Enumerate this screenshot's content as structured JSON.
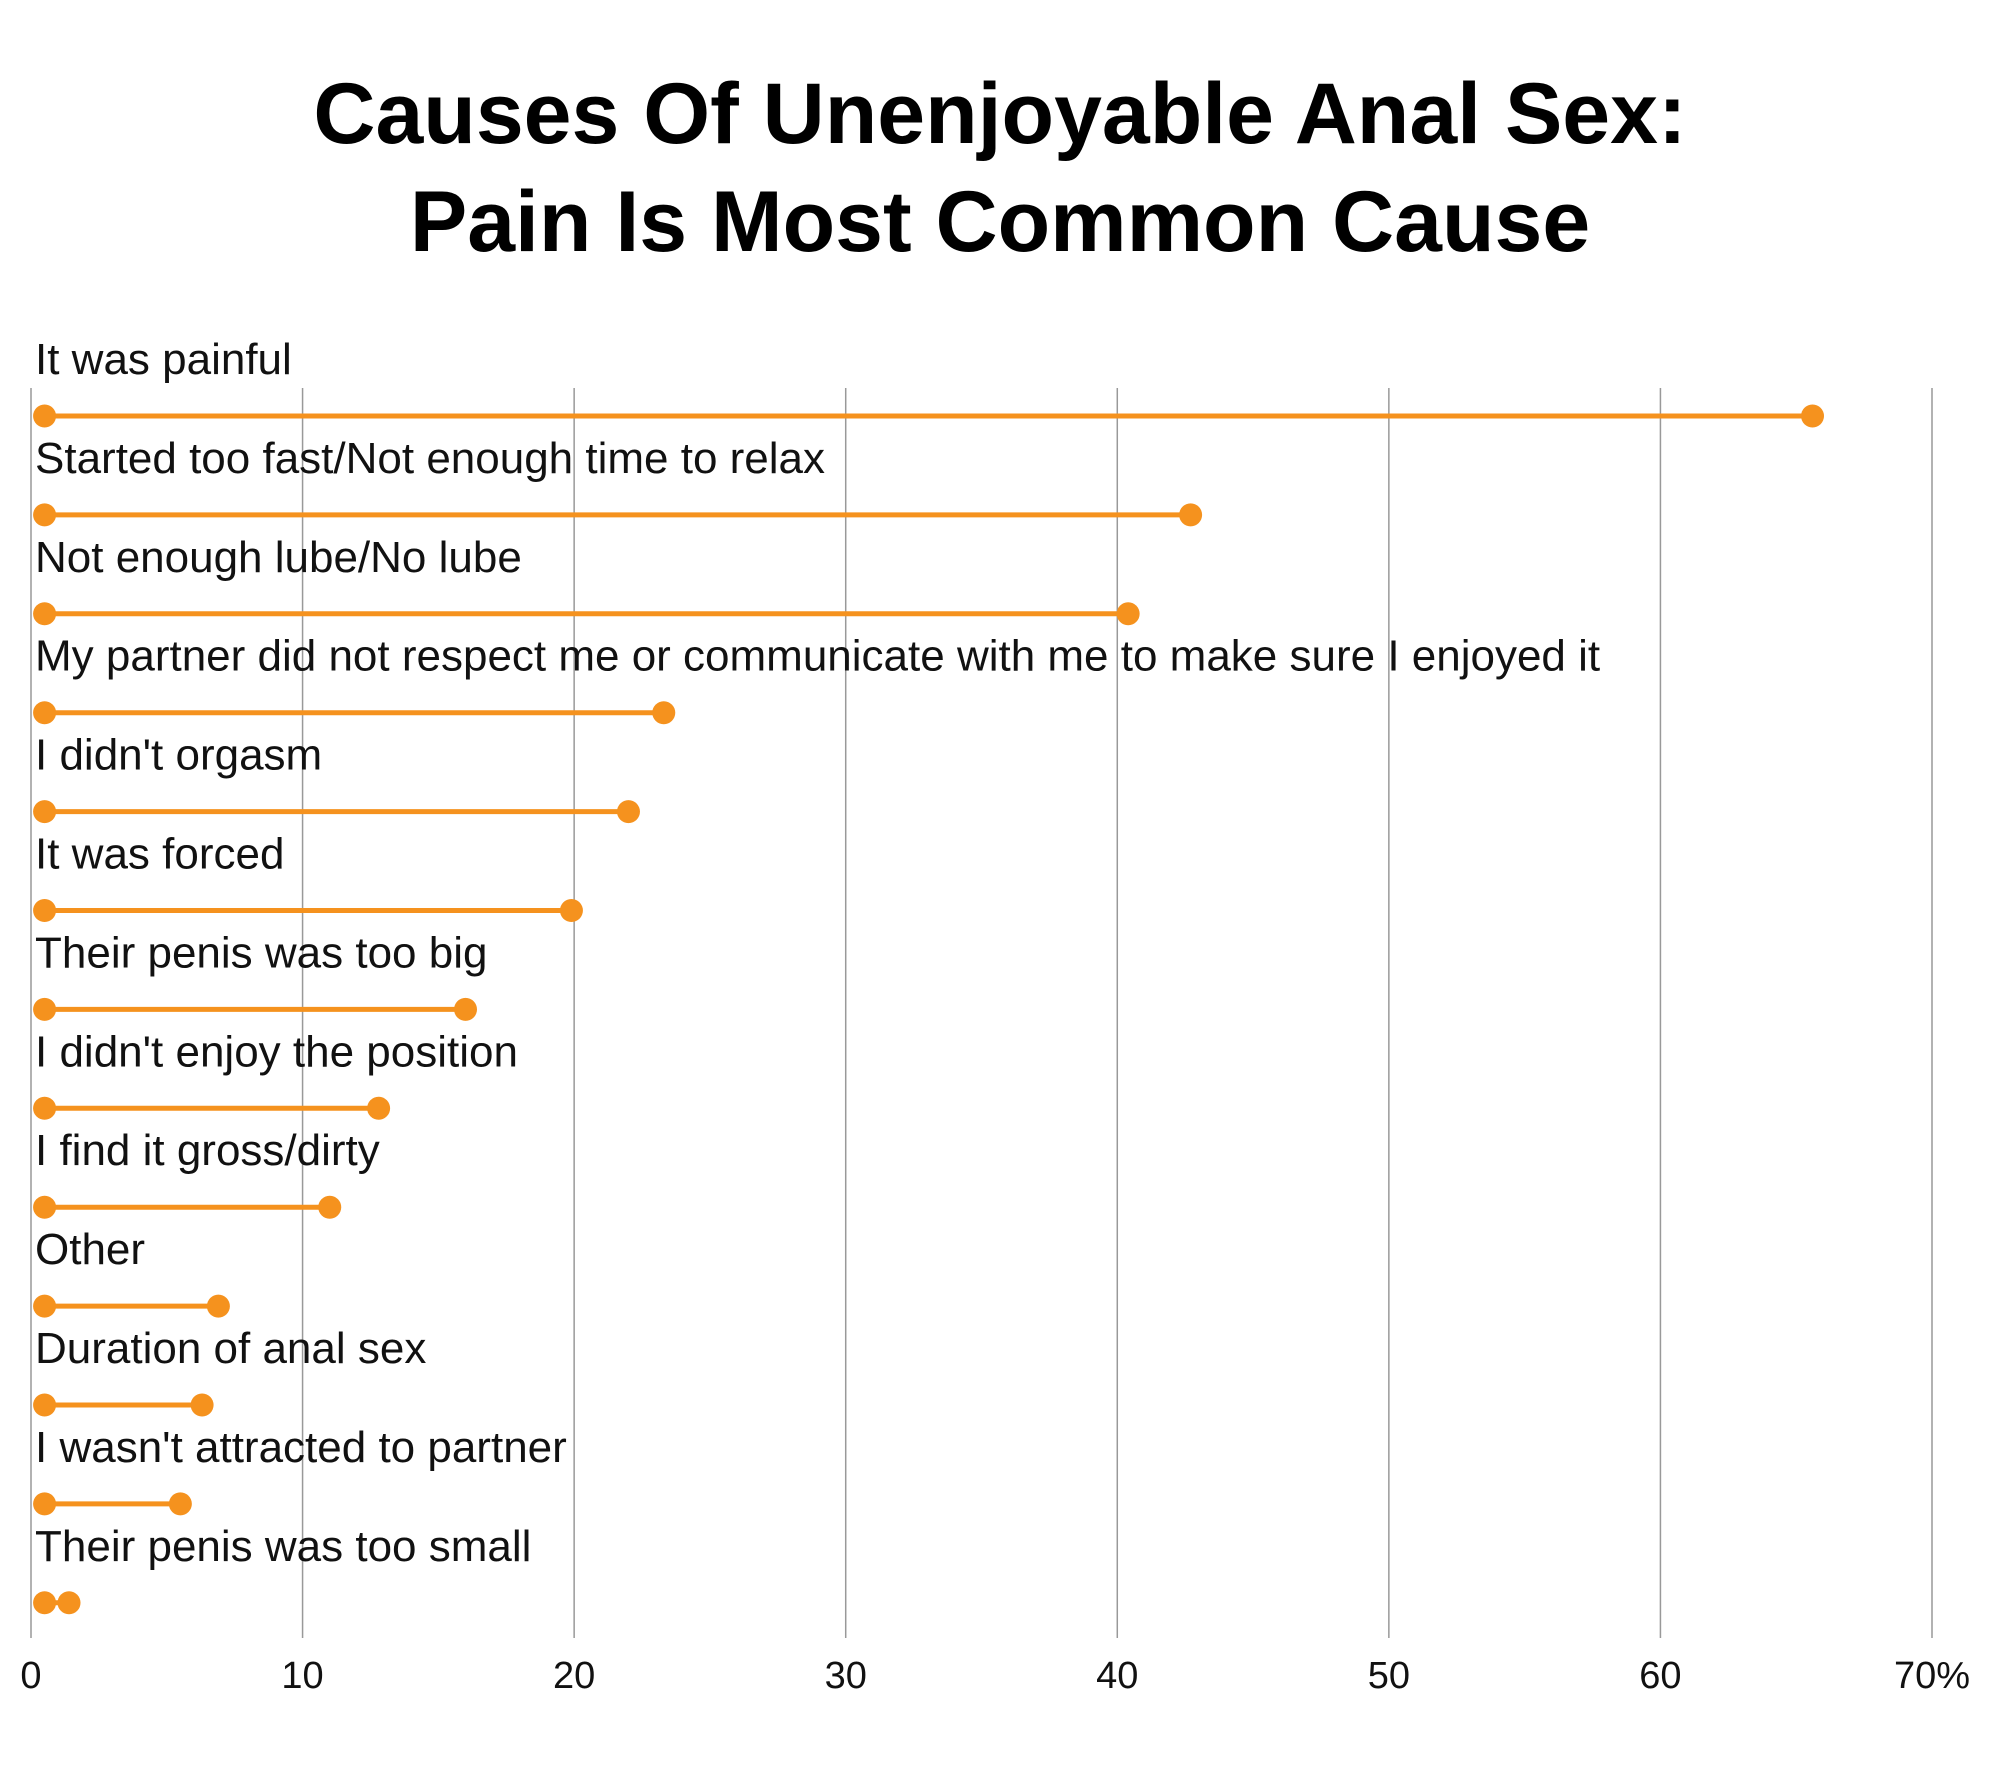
{
  "chart_data": {
    "type": "dot-range",
    "title_lines": [
      "Causes Of Unenjoyable Anal Sex:",
      "Pain Is Most Common Cause"
    ],
    "xlabel": "",
    "ylabel": "",
    "xlim": [
      0,
      70
    ],
    "xticks": [
      {
        "value": 0,
        "label": "0"
      },
      {
        "value": 10,
        "label": "10"
      },
      {
        "value": 20,
        "label": "20"
      },
      {
        "value": 30,
        "label": "30"
      },
      {
        "value": 40,
        "label": "40"
      },
      {
        "value": 50,
        "label": "50"
      },
      {
        "value": 60,
        "label": "60"
      },
      {
        "value": 70,
        "label": "70%"
      }
    ],
    "grid": true,
    "color": "#F5921E",
    "categories": [
      "It was painful",
      "Started too fast/Not enough time to relax",
      "Not enough lube/No lube",
      "My partner did not respect me or communicate with me to make sure I enjoyed it",
      "I didn't orgasm",
      "It was forced",
      "Their penis was too big",
      "I didn't enjoy the position",
      "I find it gross/dirty",
      "Other",
      "Duration of anal sex",
      "I wasn't attracted to partner",
      "Their penis was too small"
    ],
    "start_values": [
      0.5,
      0.5,
      0.5,
      0.5,
      0.5,
      0.5,
      0.5,
      0.5,
      0.5,
      0.5,
      0.5,
      0.5,
      0.5
    ],
    "values": [
      65.6,
      42.7,
      40.4,
      23.3,
      22.0,
      19.9,
      16.0,
      12.8,
      11.0,
      6.9,
      6.3,
      5.5,
      1.4
    ]
  }
}
